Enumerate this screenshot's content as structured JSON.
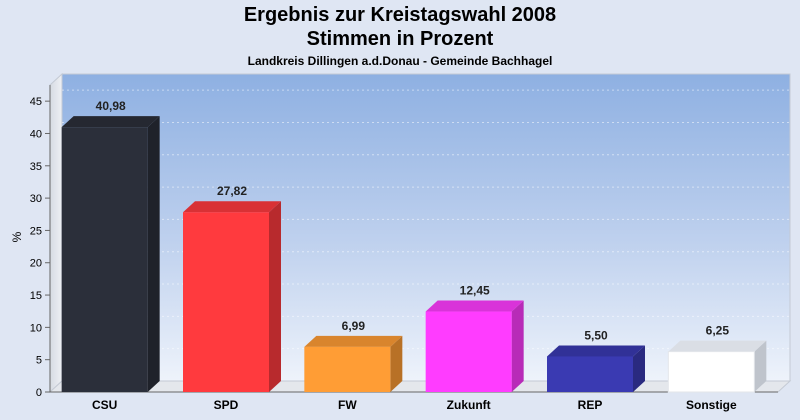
{
  "chart_data": {
    "type": "bar",
    "title": "Ergebnis zur Kreistagswahl 2008",
    "title_line2": "Stimmen in Prozent",
    "subtitle": "Landkreis Dillingen a.d.Donau - Gemeinde Bachhagel",
    "ylabel": "%",
    "xlabel": "",
    "ylim": [
      0,
      47.5
    ],
    "yticks": [
      0,
      5,
      10,
      15,
      20,
      25,
      30,
      35,
      40,
      45
    ],
    "grid": true,
    "categories": [
      "CSU",
      "SPD",
      "FW",
      "Zukunft",
      "REP",
      "Sonstige"
    ],
    "values": [
      40.98,
      27.82,
      6.99,
      12.45,
      5.5,
      6.25
    ],
    "value_labels": [
      "40,98",
      "27,82",
      "6,99",
      "12,45",
      "5,50",
      "6,25"
    ],
    "colors": [
      "#2b2f3a",
      "#ff3a3e",
      "#ff9d35",
      "#ff3cff",
      "#3a3ab2",
      "#ffffff"
    ]
  }
}
